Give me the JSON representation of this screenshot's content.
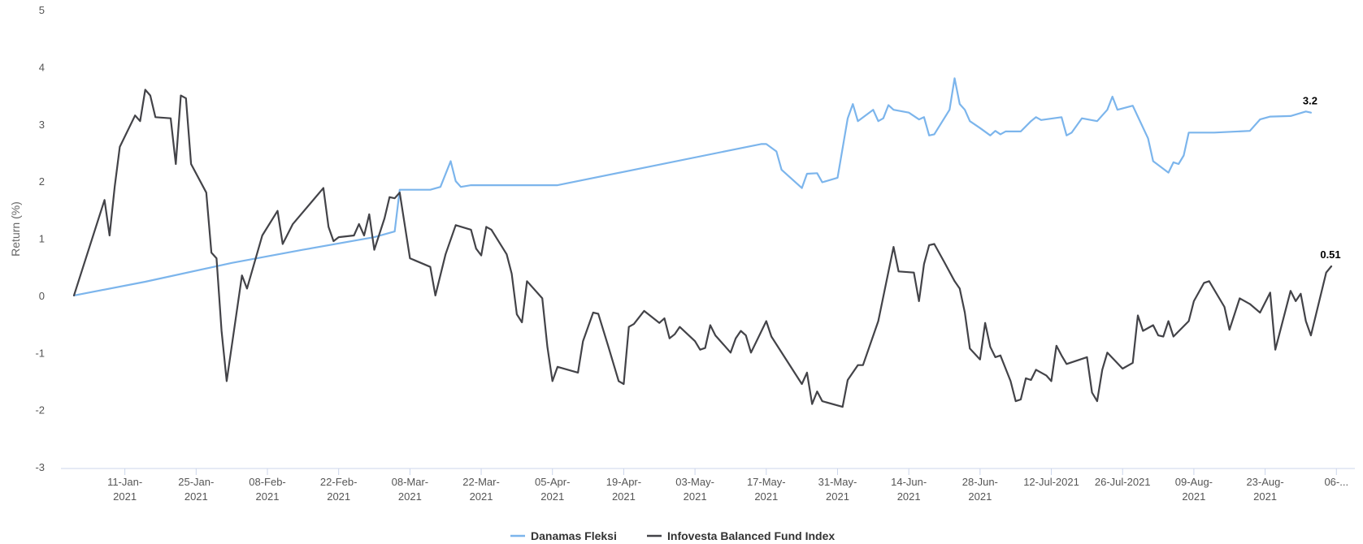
{
  "chart_data": {
    "type": "line",
    "ylabel": "Return (%)",
    "xlabel": "",
    "ylim": [
      -3,
      5
    ],
    "yticks": [
      -3,
      -2,
      -1,
      0,
      1,
      2,
      3,
      4,
      5
    ],
    "grid": false,
    "legend_position": "bottom-center",
    "x_tick_labels": [
      {
        "date": "2021-01-11",
        "lines": [
          "11-Jan-",
          "2021"
        ]
      },
      {
        "date": "2021-01-25",
        "lines": [
          "25-Jan-",
          "2021"
        ]
      },
      {
        "date": "2021-02-08",
        "lines": [
          "08-Feb-",
          "2021"
        ]
      },
      {
        "date": "2021-02-22",
        "lines": [
          "22-Feb-",
          "2021"
        ]
      },
      {
        "date": "2021-03-08",
        "lines": [
          "08-Mar-",
          "2021"
        ]
      },
      {
        "date": "2021-03-22",
        "lines": [
          "22-Mar-",
          "2021"
        ]
      },
      {
        "date": "2021-04-05",
        "lines": [
          "05-Apr-",
          "2021"
        ]
      },
      {
        "date": "2021-04-19",
        "lines": [
          "19-Apr-",
          "2021"
        ]
      },
      {
        "date": "2021-05-03",
        "lines": [
          "03-May-",
          "2021"
        ]
      },
      {
        "date": "2021-05-17",
        "lines": [
          "17-May-",
          "2021"
        ]
      },
      {
        "date": "2021-05-31",
        "lines": [
          "31-May-",
          "2021"
        ]
      },
      {
        "date": "2021-06-14",
        "lines": [
          "14-Jun-",
          "2021"
        ]
      },
      {
        "date": "2021-06-28",
        "lines": [
          "28-Jun-",
          "2021"
        ]
      },
      {
        "date": "2021-07-12",
        "lines": [
          "12-Jul-2021"
        ]
      },
      {
        "date": "2021-07-26",
        "lines": [
          "26-Jul-2021"
        ]
      },
      {
        "date": "2021-08-09",
        "lines": [
          "09-Aug-",
          "2021"
        ]
      },
      {
        "date": "2021-08-23",
        "lines": [
          "23-Aug-",
          "2021"
        ]
      },
      {
        "date": "2021-09-06",
        "lines": [
          "06-..."
        ]
      }
    ],
    "series": [
      {
        "name": "Danamas Fleksi",
        "color": "#7cb5ec",
        "end_label": "3.2",
        "points": [
          [
            "2021-01-01",
            0
          ],
          [
            "2021-01-15",
            0.24
          ],
          [
            "2021-02-01",
            0.57
          ],
          [
            "2021-02-15",
            0.8
          ],
          [
            "2021-03-01",
            1.02
          ],
          [
            "2021-03-05",
            1.12
          ],
          [
            "2021-03-06",
            1.85
          ],
          [
            "2021-03-12",
            1.85
          ],
          [
            "2021-03-14",
            1.9
          ],
          [
            "2021-03-16",
            2.35
          ],
          [
            "2021-03-17",
            2.0
          ],
          [
            "2021-03-18",
            1.9
          ],
          [
            "2021-03-20",
            1.93
          ],
          [
            "2021-04-06",
            1.93
          ],
          [
            "2021-05-16",
            2.65
          ],
          [
            "2021-05-17",
            2.65
          ],
          [
            "2021-05-19",
            2.52
          ],
          [
            "2021-05-20",
            2.2
          ],
          [
            "2021-05-24",
            1.88
          ],
          [
            "2021-05-25",
            2.13
          ],
          [
            "2021-05-27",
            2.14
          ],
          [
            "2021-05-28",
            1.98
          ],
          [
            "2021-05-31",
            2.06
          ],
          [
            "2021-06-02",
            3.1
          ],
          [
            "2021-06-03",
            3.35
          ],
          [
            "2021-06-04",
            3.05
          ],
          [
            "2021-06-07",
            3.25
          ],
          [
            "2021-06-08",
            3.05
          ],
          [
            "2021-06-09",
            3.1
          ],
          [
            "2021-06-10",
            3.33
          ],
          [
            "2021-06-11",
            3.25
          ],
          [
            "2021-06-14",
            3.2
          ],
          [
            "2021-06-16",
            3.08
          ],
          [
            "2021-06-17",
            3.12
          ],
          [
            "2021-06-18",
            2.8
          ],
          [
            "2021-06-19",
            2.82
          ],
          [
            "2021-06-22",
            3.25
          ],
          [
            "2021-06-23",
            3.8
          ],
          [
            "2021-06-24",
            3.35
          ],
          [
            "2021-06-25",
            3.25
          ],
          [
            "2021-06-26",
            3.05
          ],
          [
            "2021-06-28",
            2.93
          ],
          [
            "2021-06-30",
            2.8
          ],
          [
            "2021-07-01",
            2.88
          ],
          [
            "2021-07-02",
            2.82
          ],
          [
            "2021-07-03",
            2.87
          ],
          [
            "2021-07-06",
            2.87
          ],
          [
            "2021-07-08",
            3.05
          ],
          [
            "2021-07-09",
            3.12
          ],
          [
            "2021-07-10",
            3.07
          ],
          [
            "2021-07-14",
            3.12
          ],
          [
            "2021-07-15",
            2.8
          ],
          [
            "2021-07-16",
            2.85
          ],
          [
            "2021-07-18",
            3.1
          ],
          [
            "2021-07-21",
            3.05
          ],
          [
            "2021-07-23",
            3.25
          ],
          [
            "2021-07-24",
            3.48
          ],
          [
            "2021-07-25",
            3.25
          ],
          [
            "2021-07-28",
            3.32
          ],
          [
            "2021-07-31",
            2.75
          ],
          [
            "2021-08-01",
            2.35
          ],
          [
            "2021-08-04",
            2.15
          ],
          [
            "2021-08-05",
            2.33
          ],
          [
            "2021-08-06",
            2.3
          ],
          [
            "2021-08-07",
            2.45
          ],
          [
            "2021-08-08",
            2.85
          ],
          [
            "2021-08-13",
            2.85
          ],
          [
            "2021-08-20",
            2.88
          ],
          [
            "2021-08-22",
            3.08
          ],
          [
            "2021-08-24",
            3.13
          ],
          [
            "2021-08-28",
            3.14
          ],
          [
            "2021-08-31",
            3.22
          ],
          [
            "2021-09-01",
            3.2
          ]
        ]
      },
      {
        "name": "Infovesta Balanced Fund Index",
        "color": "#434348",
        "end_label": "0.51",
        "points": [
          [
            "2021-01-01",
            0
          ],
          [
            "2021-01-07",
            1.67
          ],
          [
            "2021-01-08",
            1.05
          ],
          [
            "2021-01-09",
            1.9
          ],
          [
            "2021-01-10",
            2.6
          ],
          [
            "2021-01-13",
            3.15
          ],
          [
            "2021-01-14",
            3.05
          ],
          [
            "2021-01-15",
            3.6
          ],
          [
            "2021-01-16",
            3.5
          ],
          [
            "2021-01-17",
            3.12
          ],
          [
            "2021-01-20",
            3.1
          ],
          [
            "2021-01-21",
            2.3
          ],
          [
            "2021-01-22",
            3.5
          ],
          [
            "2021-01-23",
            3.45
          ],
          [
            "2021-01-24",
            2.3
          ],
          [
            "2021-01-27",
            1.8
          ],
          [
            "2021-01-28",
            0.75
          ],
          [
            "2021-01-29",
            0.65
          ],
          [
            "2021-01-30",
            -0.62
          ],
          [
            "2021-01-31",
            -1.5
          ],
          [
            "2021-02-03",
            0.35
          ],
          [
            "2021-02-04",
            0.12
          ],
          [
            "2021-02-07",
            1.05
          ],
          [
            "2021-02-10",
            1.48
          ],
          [
            "2021-02-11",
            0.9
          ],
          [
            "2021-02-13",
            1.25
          ],
          [
            "2021-02-19",
            1.88
          ],
          [
            "2021-02-20",
            1.2
          ],
          [
            "2021-02-21",
            0.95
          ],
          [
            "2021-02-22",
            1.02
          ],
          [
            "2021-02-25",
            1.05
          ],
          [
            "2021-02-26",
            1.25
          ],
          [
            "2021-02-27",
            1.05
          ],
          [
            "2021-02-28",
            1.42
          ],
          [
            "2021-03-01",
            0.8
          ],
          [
            "2021-03-03",
            1.35
          ],
          [
            "2021-03-04",
            1.72
          ],
          [
            "2021-03-05",
            1.7
          ],
          [
            "2021-03-06",
            1.8
          ],
          [
            "2021-03-08",
            0.65
          ],
          [
            "2021-03-12",
            0.5
          ],
          [
            "2021-03-13",
            0.0
          ],
          [
            "2021-03-15",
            0.72
          ],
          [
            "2021-03-17",
            1.23
          ],
          [
            "2021-03-20",
            1.15
          ],
          [
            "2021-03-21",
            0.82
          ],
          [
            "2021-03-22",
            0.7
          ],
          [
            "2021-03-23",
            1.2
          ],
          [
            "2021-03-24",
            1.15
          ],
          [
            "2021-03-27",
            0.72
          ],
          [
            "2021-03-28",
            0.38
          ],
          [
            "2021-03-29",
            -0.33
          ],
          [
            "2021-03-30",
            -0.47
          ],
          [
            "2021-03-31",
            0.25
          ],
          [
            "2021-04-03",
            -0.05
          ],
          [
            "2021-04-04",
            -0.9
          ],
          [
            "2021-04-05",
            -1.5
          ],
          [
            "2021-04-06",
            -1.25
          ],
          [
            "2021-04-10",
            -1.35
          ],
          [
            "2021-04-11",
            -0.8
          ],
          [
            "2021-04-13",
            -0.3
          ],
          [
            "2021-04-14",
            -0.32
          ],
          [
            "2021-04-16",
            -0.9
          ],
          [
            "2021-04-18",
            -1.5
          ],
          [
            "2021-04-19",
            -1.55
          ],
          [
            "2021-04-20",
            -0.55
          ],
          [
            "2021-04-21",
            -0.5
          ],
          [
            "2021-04-23",
            -0.27
          ],
          [
            "2021-04-26",
            -0.48
          ],
          [
            "2021-04-27",
            -0.4
          ],
          [
            "2021-04-28",
            -0.75
          ],
          [
            "2021-04-29",
            -0.68
          ],
          [
            "2021-04-30",
            -0.55
          ],
          [
            "2021-05-03",
            -0.8
          ],
          [
            "2021-05-04",
            -0.95
          ],
          [
            "2021-05-05",
            -0.92
          ],
          [
            "2021-05-06",
            -0.52
          ],
          [
            "2021-05-07",
            -0.7
          ],
          [
            "2021-05-09",
            -0.9
          ],
          [
            "2021-05-10",
            -1.0
          ],
          [
            "2021-05-11",
            -0.75
          ],
          [
            "2021-05-12",
            -0.62
          ],
          [
            "2021-05-13",
            -0.7
          ],
          [
            "2021-05-14",
            -1.0
          ],
          [
            "2021-05-17",
            -0.45
          ],
          [
            "2021-05-18",
            -0.72
          ],
          [
            "2021-05-24",
            -1.55
          ],
          [
            "2021-05-25",
            -1.35
          ],
          [
            "2021-05-26",
            -1.9
          ],
          [
            "2021-05-27",
            -1.68
          ],
          [
            "2021-05-28",
            -1.85
          ],
          [
            "2021-06-01",
            -1.95
          ],
          [
            "2021-06-02",
            -1.48
          ],
          [
            "2021-06-04",
            -1.22
          ],
          [
            "2021-06-05",
            -1.22
          ],
          [
            "2021-06-08",
            -0.45
          ],
          [
            "2021-06-11",
            0.85
          ],
          [
            "2021-06-12",
            0.42
          ],
          [
            "2021-06-15",
            0.4
          ],
          [
            "2021-06-16",
            -0.1
          ],
          [
            "2021-06-17",
            0.55
          ],
          [
            "2021-06-18",
            0.88
          ],
          [
            "2021-06-19",
            0.9
          ],
          [
            "2021-06-21",
            0.58
          ],
          [
            "2021-06-23",
            0.25
          ],
          [
            "2021-06-24",
            0.12
          ],
          [
            "2021-06-25",
            -0.3
          ],
          [
            "2021-06-26",
            -0.93
          ],
          [
            "2021-06-28",
            -1.12
          ],
          [
            "2021-06-29",
            -0.48
          ],
          [
            "2021-06-30",
            -0.9
          ],
          [
            "2021-07-01",
            -1.08
          ],
          [
            "2021-07-02",
            -1.05
          ],
          [
            "2021-07-04",
            -1.5
          ],
          [
            "2021-07-05",
            -1.85
          ],
          [
            "2021-07-06",
            -1.82
          ],
          [
            "2021-07-07",
            -1.45
          ],
          [
            "2021-07-08",
            -1.48
          ],
          [
            "2021-07-09",
            -1.3
          ],
          [
            "2021-07-11",
            -1.4
          ],
          [
            "2021-07-12",
            -1.5
          ],
          [
            "2021-07-13",
            -0.88
          ],
          [
            "2021-07-14",
            -1.05
          ],
          [
            "2021-07-15",
            -1.2
          ],
          [
            "2021-07-19",
            -1.08
          ],
          [
            "2021-07-20",
            -1.7
          ],
          [
            "2021-07-21",
            -1.85
          ],
          [
            "2021-07-22",
            -1.3
          ],
          [
            "2021-07-23",
            -1.0
          ],
          [
            "2021-07-26",
            -1.28
          ],
          [
            "2021-07-28",
            -1.18
          ],
          [
            "2021-07-29",
            -0.35
          ],
          [
            "2021-07-30",
            -0.62
          ],
          [
            "2021-08-01",
            -0.52
          ],
          [
            "2021-08-02",
            -0.7
          ],
          [
            "2021-08-03",
            -0.72
          ],
          [
            "2021-08-04",
            -0.45
          ],
          [
            "2021-08-05",
            -0.72
          ],
          [
            "2021-08-08",
            -0.45
          ],
          [
            "2021-08-09",
            -0.1
          ],
          [
            "2021-08-11",
            0.22
          ],
          [
            "2021-08-12",
            0.25
          ],
          [
            "2021-08-15",
            -0.2
          ],
          [
            "2021-08-16",
            -0.6
          ],
          [
            "2021-08-18",
            -0.05
          ],
          [
            "2021-08-20",
            -0.15
          ],
          [
            "2021-08-22",
            -0.3
          ],
          [
            "2021-08-24",
            0.05
          ],
          [
            "2021-08-25",
            -0.95
          ],
          [
            "2021-08-28",
            0.08
          ],
          [
            "2021-08-29",
            -0.1
          ],
          [
            "2021-08-30",
            0.03
          ],
          [
            "2021-08-31",
            -0.45
          ],
          [
            "2021-09-01",
            -0.7
          ],
          [
            "2021-09-04",
            0.4
          ],
          [
            "2021-09-05",
            0.51
          ]
        ]
      }
    ]
  }
}
